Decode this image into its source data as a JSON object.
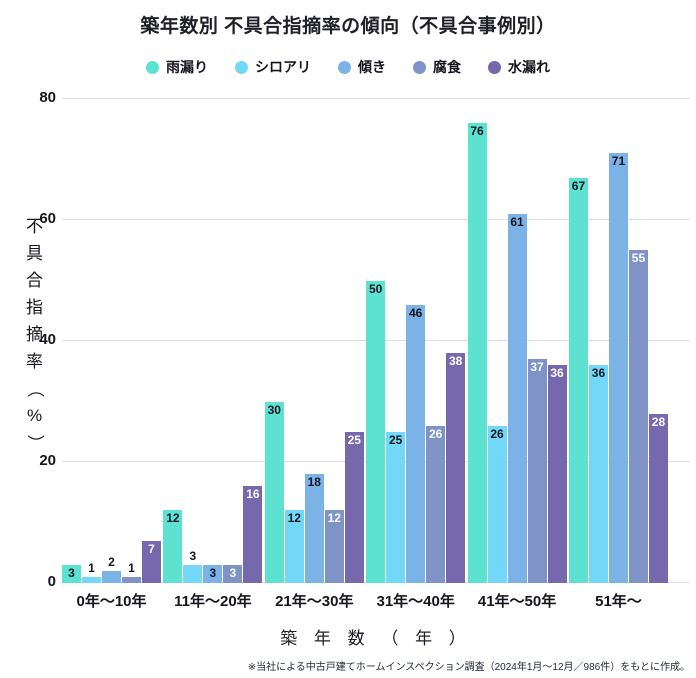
{
  "title": "築年数別 不具合指摘率の傾向（不具合事例別）",
  "legend": [
    {
      "label": "雨漏り",
      "color": "#5de2d2"
    },
    {
      "label": "シロアリ",
      "color": "#73d8f8"
    },
    {
      "label": "傾き",
      "color": "#7cb3e7"
    },
    {
      "label": "腐食",
      "color": "#8093c6"
    },
    {
      "label": "水漏れ",
      "color": "#7767ac"
    }
  ],
  "y_axis": {
    "title_chars": [
      "不",
      "具",
      "合",
      "指",
      "摘",
      "率",
      "（",
      "%",
      "）"
    ],
    "ticks": [
      0,
      20,
      40,
      60,
      80
    ]
  },
  "x_axis": {
    "title": "築 年 数 （ 年 ）"
  },
  "footnote": "※当社による中古戸建てホームインスペクション調査（2024年1月～12月／986件）をもとに作成。",
  "chart_data": {
    "type": "bar",
    "title": "築年数別 不具合指摘率の傾向（不具合事例別）",
    "xlabel": "築年数（年）",
    "ylabel": "不具合指摘率（%）",
    "ylim": [
      0,
      80
    ],
    "grid": true,
    "legend_position": "top",
    "categories": [
      "0年～10年",
      "11年～20年",
      "21年～30年",
      "31年～40年",
      "41年～50年",
      "51年～"
    ],
    "series": [
      {
        "name": "雨漏り",
        "color": "#5de2d2",
        "label_color": "dark",
        "values": [
          3,
          12,
          30,
          50,
          76,
          67
        ]
      },
      {
        "name": "シロアリ",
        "color": "#73d8f8",
        "label_color": "dark",
        "values": [
          1,
          3,
          12,
          25,
          26,
          36
        ]
      },
      {
        "name": "傾き",
        "color": "#7cb3e7",
        "label_color": "dark",
        "values": [
          2,
          3,
          18,
          46,
          61,
          71
        ]
      },
      {
        "name": "腐食",
        "color": "#8093c6",
        "label_color": "white",
        "values": [
          1,
          3,
          12,
          26,
          37,
          55
        ]
      },
      {
        "name": "水漏れ",
        "color": "#7767ac",
        "label_color": "white",
        "values": [
          7,
          16,
          25,
          38,
          36,
          28
        ]
      }
    ],
    "label_placement": [
      [
        "in",
        "above",
        "above",
        "above",
        "in"
      ],
      [
        "in",
        "above",
        "in",
        "in",
        "in"
      ],
      [
        "in",
        "in",
        "in",
        "in",
        "in"
      ],
      [
        "in",
        "in",
        "in",
        "in",
        "in"
      ],
      [
        "in",
        "in",
        "in",
        "in",
        "in"
      ],
      [
        "in",
        "in",
        "in",
        "in",
        "in"
      ]
    ]
  }
}
